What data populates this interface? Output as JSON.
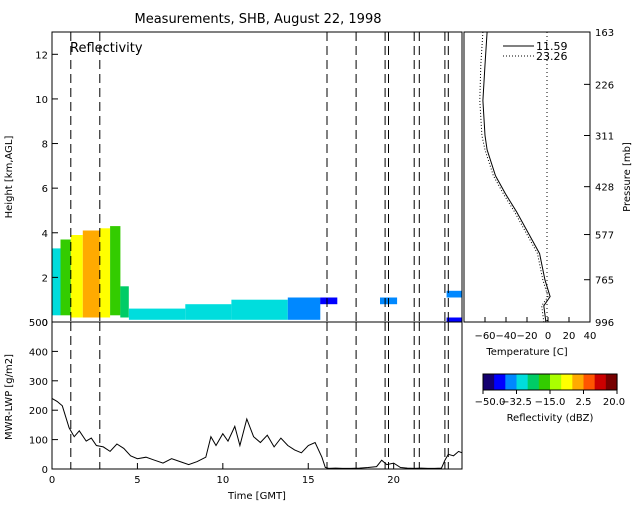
{
  "chart_data": [
    {
      "type": "heatmap",
      "title": "Measurements, SHB, August 22, 1998",
      "panel_label": "Reflectivity",
      "xlabel": "",
      "ylabel": "Height [km,AGL]",
      "xlim": [
        0,
        24
      ],
      "ylim": [
        0,
        13
      ],
      "y_ticks": [
        "0",
        "2",
        "4",
        "6",
        "8",
        "10",
        "12"
      ],
      "dashed_times": [
        1.1,
        2.8,
        16.1,
        17.8,
        19.5,
        19.7,
        21.2,
        21.5,
        23.0,
        23.2
      ],
      "colorbar": {
        "label": "Reflectivity (dBZ)",
        "range": [
          -50,
          20
        ],
        "ticks": [
          "−50.0",
          "−32.5",
          "−15.0",
          "2.5",
          "20.0"
        ],
        "colors": [
          "#140070",
          "#0000ff",
          "#0088ff",
          "#00dddd",
          "#00cc66",
          "#33cc00",
          "#aaff00",
          "#ffff00",
          "#ffaa00",
          "#ff5500",
          "#cc0000",
          "#770000"
        ]
      },
      "echoes": [
        {
          "t0": 0.0,
          "t1": 0.5,
          "base": 0.3,
          "top": 3.3,
          "dbz": -28
        },
        {
          "t0": 0.5,
          "t1": 1.1,
          "base": 0.3,
          "top": 3.7,
          "dbz": -20
        },
        {
          "t0": 1.1,
          "t1": 1.8,
          "base": 0.2,
          "top": 3.9,
          "dbz": -6
        },
        {
          "t0": 1.8,
          "t1": 2.8,
          "base": 0.2,
          "top": 4.1,
          "dbz": 2
        },
        {
          "t0": 2.8,
          "t1": 3.4,
          "base": 0.2,
          "top": 4.2,
          "dbz": -8
        },
        {
          "t0": 3.4,
          "t1": 4.0,
          "base": 0.3,
          "top": 4.3,
          "dbz": -20
        },
        {
          "t0": 4.0,
          "t1": 4.5,
          "base": 0.2,
          "top": 1.6,
          "dbz": -24
        },
        {
          "t0": 4.5,
          "t1": 7.8,
          "base": 0.1,
          "top": 0.6,
          "dbz": -30
        },
        {
          "t0": 7.8,
          "t1": 10.5,
          "base": 0.1,
          "top": 0.8,
          "dbz": -30
        },
        {
          "t0": 10.5,
          "t1": 13.8,
          "base": 0.1,
          "top": 1.0,
          "dbz": -32
        },
        {
          "t0": 13.8,
          "t1": 15.7,
          "base": 0.1,
          "top": 1.1,
          "dbz": -36
        },
        {
          "t0": 15.7,
          "t1": 16.7,
          "base": 0.8,
          "top": 1.1,
          "dbz": -40
        },
        {
          "t0": 19.2,
          "t1": 20.2,
          "base": 0.8,
          "top": 1.1,
          "dbz": -38
        },
        {
          "t0": 23.1,
          "t1": 24.0,
          "base": 1.1,
          "top": 1.4,
          "dbz": -36
        },
        {
          "t0": 23.1,
          "t1": 24.0,
          "base": 0.0,
          "top": 0.2,
          "dbz": -40
        }
      ]
    },
    {
      "type": "line",
      "xlabel": "Time [GMT]",
      "ylabel": "MWR-LWP [g/m2]",
      "xlim": [
        0,
        24
      ],
      "ylim": [
        0,
        500
      ],
      "x_ticks": [
        "0",
        "5",
        "10",
        "15",
        "20"
      ],
      "y_ticks": [
        "0",
        "100",
        "200",
        "300",
        "400",
        "500"
      ],
      "series": [
        {
          "x": [
            0.0,
            0.3,
            0.6,
            1.0,
            1.3,
            1.6,
            2.0,
            2.3,
            2.6,
            3.0,
            3.4,
            3.8,
            4.2,
            4.6,
            5.0,
            5.5,
            6.0,
            6.5,
            7.0,
            7.5,
            8.0,
            8.5,
            9.0,
            9.3,
            9.6,
            10.0,
            10.3,
            10.7,
            11.0,
            11.4,
            11.8,
            12.2,
            12.6,
            13.0,
            13.4,
            13.8,
            14.2,
            14.6,
            15.0,
            15.4,
            15.8,
            16.0,
            16.2,
            16.6,
            17.0,
            17.5,
            18.0,
            18.5,
            19.0,
            19.3,
            19.6,
            20.0,
            20.4,
            20.8,
            21.2,
            21.6,
            22.0,
            22.4,
            22.8,
            23.0,
            23.2,
            23.5,
            23.8,
            24.0
          ],
          "values": [
            240,
            230,
            215,
            140,
            110,
            130,
            95,
            105,
            80,
            75,
            60,
            85,
            70,
            45,
            35,
            40,
            30,
            20,
            35,
            25,
            15,
            25,
            40,
            110,
            80,
            120,
            95,
            145,
            80,
            170,
            110,
            90,
            115,
            75,
            105,
            80,
            65,
            55,
            80,
            90,
            40,
            5,
            2,
            3,
            2,
            2,
            3,
            5,
            8,
            30,
            15,
            20,
            5,
            3,
            2,
            3,
            2,
            2,
            3,
            30,
            50,
            45,
            60,
            55
          ]
        }
      ]
    },
    {
      "type": "line",
      "xlabel": "Temperature [C]",
      "ylabel": "Pressure [mb]",
      "xlim": [
        -80,
        40
      ],
      "x_ticks": [
        "−60",
        "−40",
        "−20",
        "0",
        "20",
        "40"
      ],
      "y_ticks": [
        "163",
        "226",
        "311",
        "428",
        "577",
        "765",
        "996"
      ],
      "legend": "top-right",
      "series": [
        {
          "name": "11.59",
          "style": "solid",
          "pressure": [
            163,
            200,
            250,
            311,
            340,
            400,
            450,
            500,
            577,
            650,
            765,
            850,
            900,
            996
          ],
          "temp": [
            -58,
            -60,
            -62,
            -60,
            -58,
            -50,
            -40,
            -30,
            -18,
            -8,
            -3,
            2,
            -4,
            -2
          ]
        },
        {
          "name": "23.26",
          "style": "dotted",
          "pressure": [
            163,
            200,
            250,
            311,
            340,
            400,
            450,
            500,
            577,
            650,
            765,
            850,
            900,
            996
          ],
          "temp": [
            -62,
            -64,
            -65,
            -63,
            -60,
            -52,
            -42,
            -32,
            -20,
            -10,
            -5,
            0,
            -6,
            -4
          ]
        }
      ]
    }
  ]
}
